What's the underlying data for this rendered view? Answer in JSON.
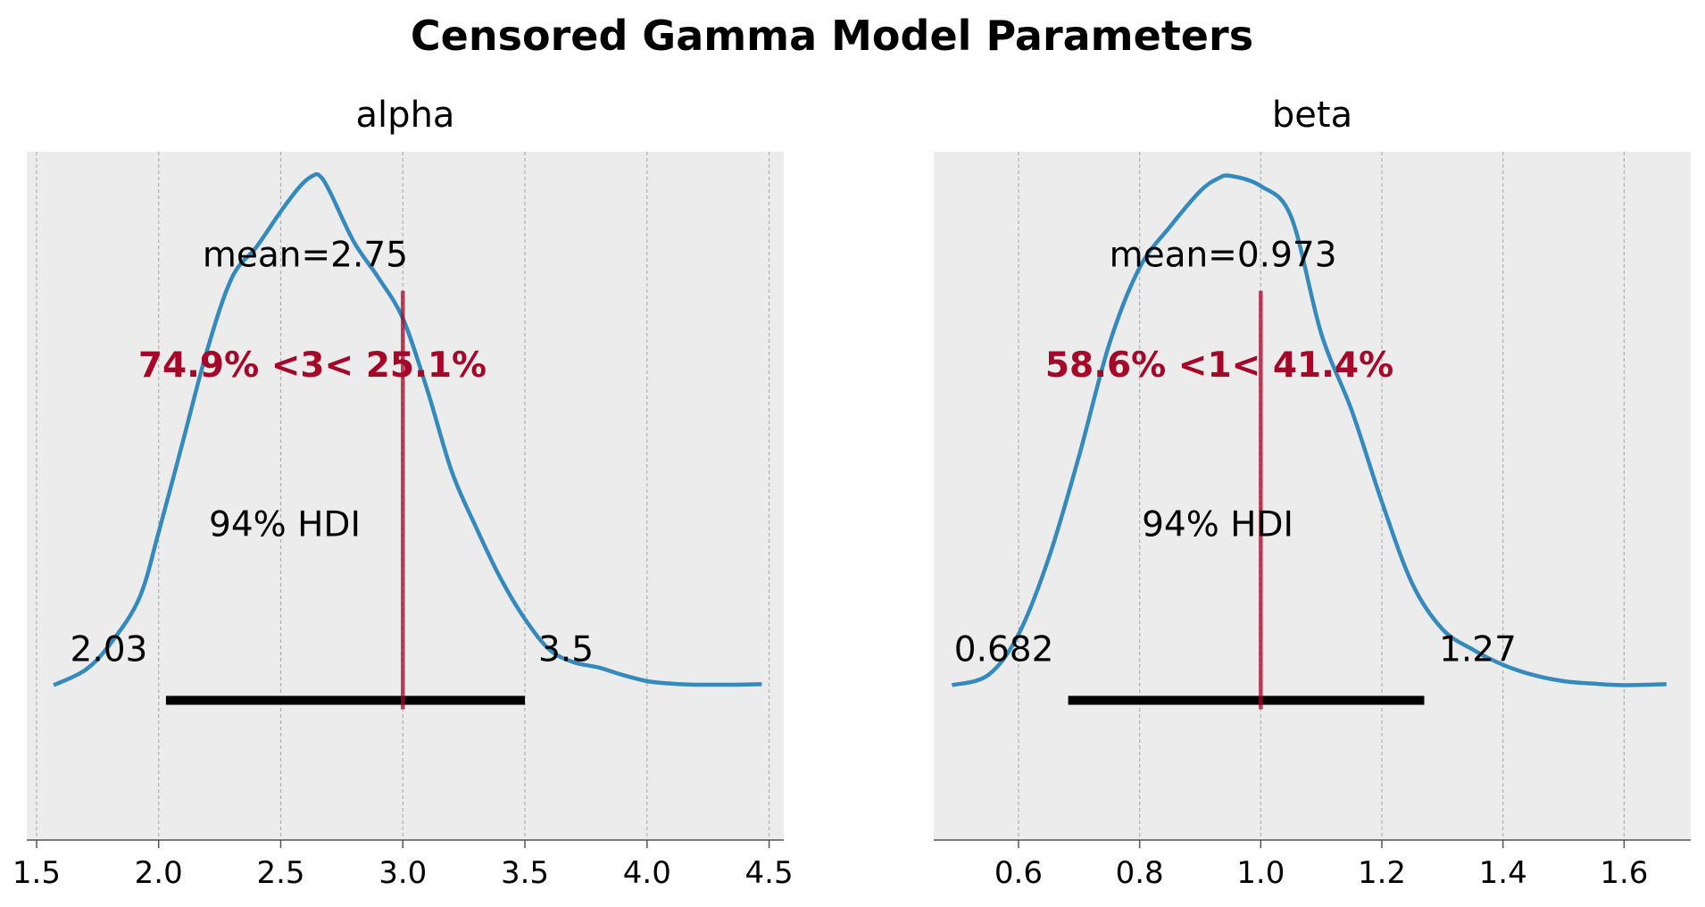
{
  "figure": {
    "title": "Censored Gamma Model Parameters"
  },
  "colors": {
    "background_axes": "#ececed",
    "density_line": "#348abd",
    "reference_line": "#a60628",
    "hdi_bar": "#000000",
    "grid": "#b0b0b0"
  },
  "chart_data": [
    {
      "type": "line",
      "title": "alpha",
      "xlabel": "",
      "ylabel": "",
      "xlim": [
        1.46,
        4.56
      ],
      "ylim": [
        0,
        1
      ],
      "xticks": [
        1.5,
        2.0,
        2.5,
        3.0,
        3.5,
        4.0,
        4.5
      ],
      "xtick_labels": [
        "1.5",
        "2.0",
        "2.5",
        "3.0",
        "3.5",
        "4.0",
        "4.5"
      ],
      "grid": "x-only, dashed",
      "series": [
        {
          "x": [
            1.57,
            1.7,
            1.8,
            1.92,
            2.0,
            2.1,
            2.2,
            2.3,
            2.4,
            2.5,
            2.58,
            2.63,
            2.66,
            2.7,
            2.8,
            2.9,
            3.0,
            3.1,
            3.2,
            3.3,
            3.4,
            3.5,
            3.6,
            3.7,
            3.8,
            3.9,
            4.0,
            4.1,
            4.2,
            4.35,
            4.47
          ],
          "y": [
            0.0,
            0.03,
            0.08,
            0.17,
            0.3,
            0.48,
            0.66,
            0.8,
            0.86,
            0.93,
            0.98,
            1.0,
            1.0,
            0.97,
            0.87,
            0.8,
            0.72,
            0.58,
            0.42,
            0.31,
            0.21,
            0.13,
            0.07,
            0.045,
            0.035,
            0.02,
            0.008,
            0.003,
            0.001,
            0.001,
            0.002
          ]
        }
      ],
      "reference_value": 3,
      "reference_label": "74.9% <3< 25.1%",
      "mean_label": "mean=2.75",
      "hdi_label": "94% HDI",
      "hdi": [
        2.03,
        3.5
      ],
      "hdi_low_label": "2.03",
      "hdi_high_label": "3.5"
    },
    {
      "type": "line",
      "title": "beta",
      "xlabel": "",
      "ylabel": "",
      "xlim": [
        0.46,
        1.71
      ],
      "ylim": [
        0,
        1
      ],
      "xticks": [
        0.6,
        0.8,
        1.0,
        1.2,
        1.4,
        1.6
      ],
      "xtick_labels": [
        "0.6",
        "0.8",
        "1.0",
        "1.2",
        "1.4",
        "1.6"
      ],
      "grid": "x-only, dashed",
      "series": [
        {
          "x": [
            0.49,
            0.55,
            0.6,
            0.65,
            0.7,
            0.75,
            0.8,
            0.85,
            0.9,
            0.93,
            0.95,
            1.0,
            1.05,
            1.1,
            1.15,
            1.2,
            1.25,
            1.3,
            1.35,
            1.4,
            1.45,
            1.5,
            1.55,
            1.6,
            1.67
          ],
          "y": [
            0.0,
            0.02,
            0.1,
            0.25,
            0.45,
            0.67,
            0.82,
            0.9,
            0.97,
            0.995,
            1.0,
            0.98,
            0.92,
            0.69,
            0.54,
            0.36,
            0.2,
            0.11,
            0.07,
            0.04,
            0.02,
            0.008,
            0.003,
            0.0,
            0.002
          ]
        }
      ],
      "reference_value": 1,
      "reference_label": "58.6% <1< 41.4%",
      "mean_label": "mean=0.973",
      "hdi_label": "94% HDI",
      "hdi": [
        0.682,
        1.27
      ],
      "hdi_low_label": "0.682",
      "hdi_high_label": "1.27"
    }
  ]
}
